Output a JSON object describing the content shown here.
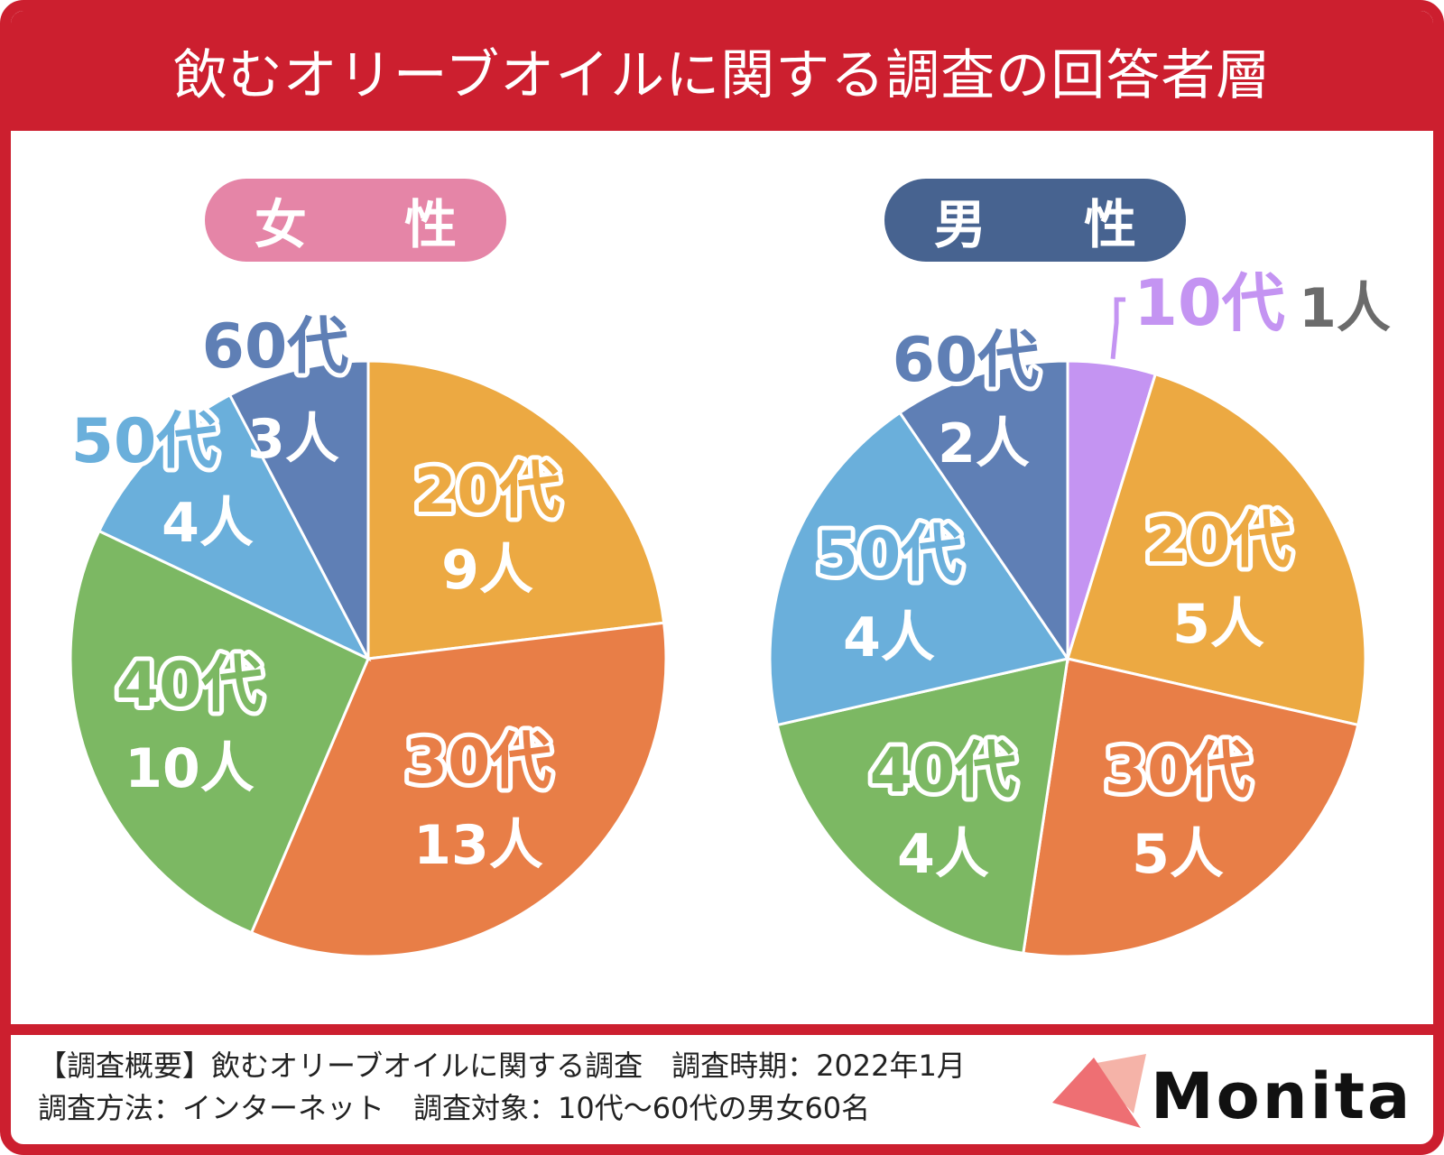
{
  "header": {
    "title": "飲むオリーブオイルに関する調査の回答者層"
  },
  "chart_data": [
    {
      "type": "pie",
      "title": "女 性",
      "unit_label": "人",
      "start_angle_deg": 0,
      "slices": [
        {
          "label": "20代",
          "value": 9,
          "value_text": "9人",
          "color": "#eca942"
        },
        {
          "label": "30代",
          "value": 13,
          "value_text": "13人",
          "color": "#e87e47"
        },
        {
          "label": "40代",
          "value": 10,
          "value_text": "10人",
          "color": "#7cb863"
        },
        {
          "label": "50代",
          "value": 4,
          "value_text": "4人",
          "color": "#6aafdb"
        },
        {
          "label": "60代",
          "value": 3,
          "value_text": "3人",
          "color": "#5f7fb5"
        }
      ]
    },
    {
      "type": "pie",
      "title": "男 性",
      "unit_label": "人",
      "start_angle_deg": 0,
      "slices": [
        {
          "label": "10代",
          "value": 1,
          "value_text": "1人",
          "color": "#c494f2"
        },
        {
          "label": "20代",
          "value": 5,
          "value_text": "5人",
          "color": "#eca942"
        },
        {
          "label": "30代",
          "value": 5,
          "value_text": "5人",
          "color": "#e87e47"
        },
        {
          "label": "40代",
          "value": 4,
          "value_text": "4人",
          "color": "#7cb863"
        },
        {
          "label": "50代",
          "value": 4,
          "value_text": "4人",
          "color": "#6aafdb"
        },
        {
          "label": "60代",
          "value": 2,
          "value_text": "2人",
          "color": "#5f7fb5"
        }
      ]
    }
  ],
  "footer": {
    "line1": "【調査概要】飲むオリーブオイルに関する調査　調査時期：2022年1月",
    "line2": "調査方法：インターネット　調査対象：10代〜60代の男女60名"
  },
  "brand": {
    "name": "Monita",
    "logo_colors": [
      "#ee6f73",
      "#f5b3a8"
    ]
  }
}
